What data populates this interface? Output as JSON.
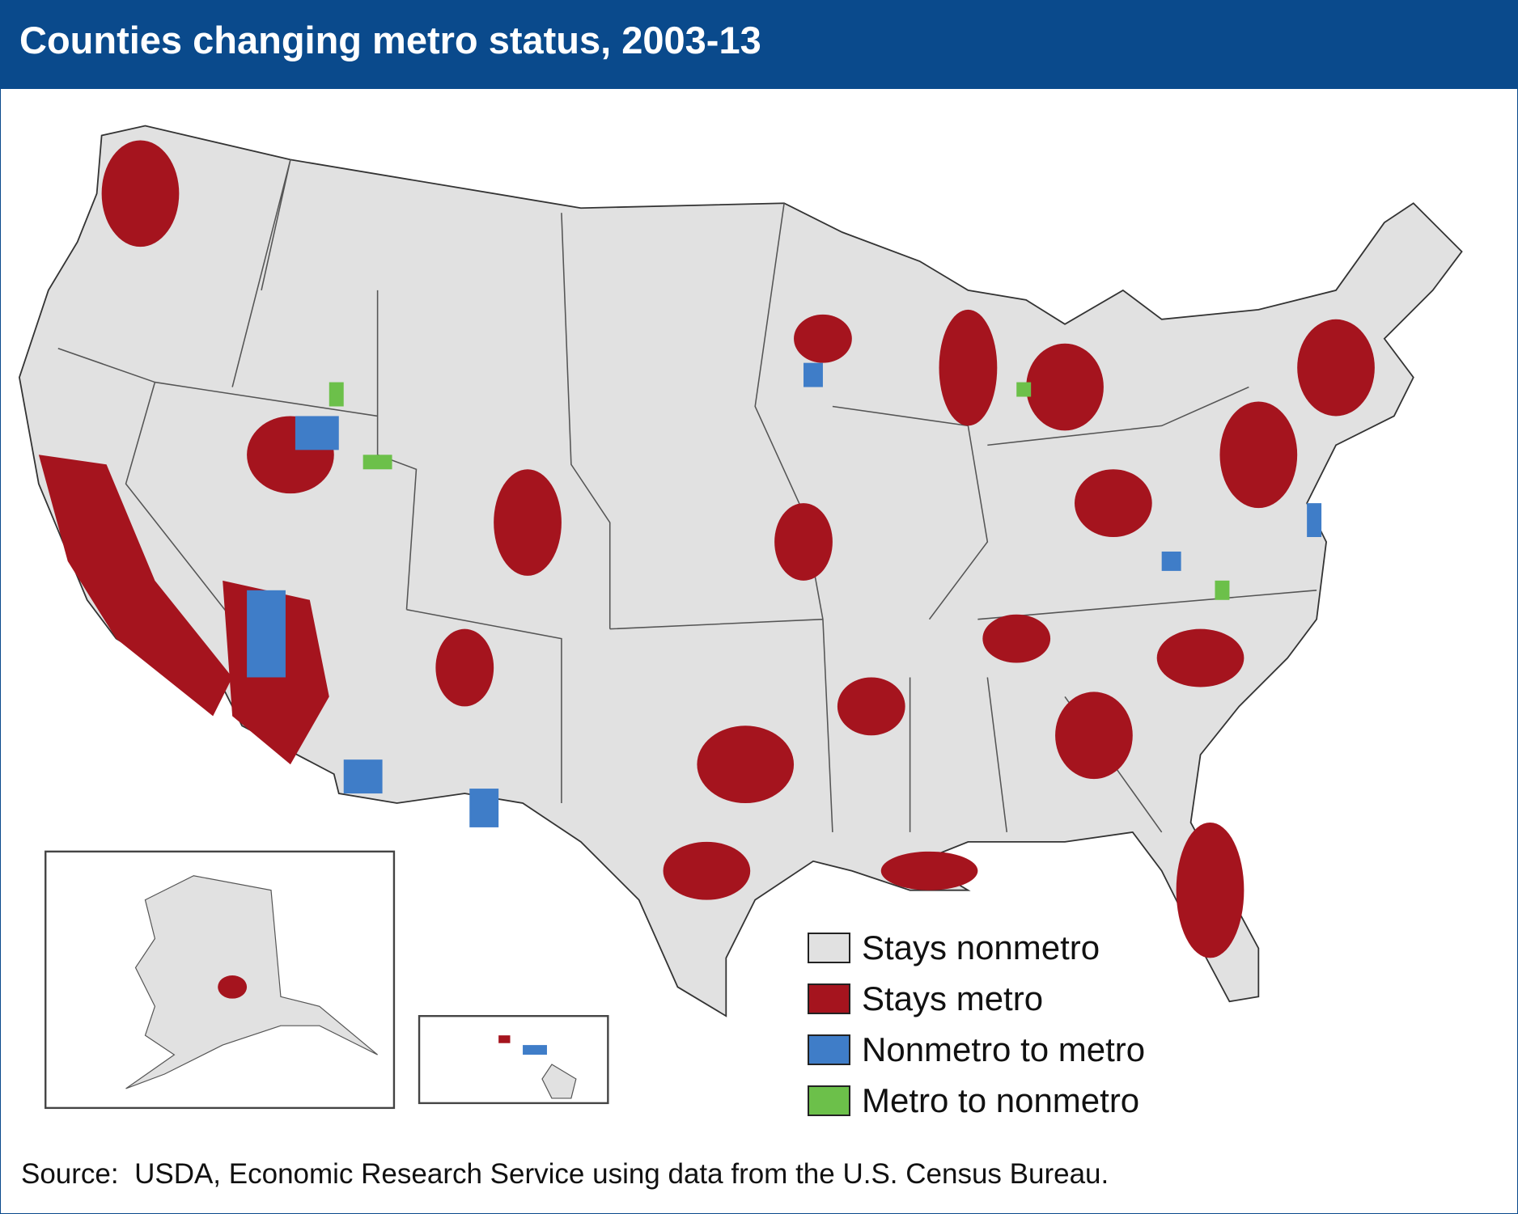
{
  "header": {
    "title": "Counties changing metro status, 2003-13"
  },
  "legend": {
    "items": [
      {
        "label": "Stays nonmetro",
        "color": "#e1e1e1"
      },
      {
        "label": "Stays metro",
        "color": "#a5141e"
      },
      {
        "label": "Nonmetro to metro",
        "color": "#3f7dc8"
      },
      {
        "label": "Metro to nonmetro",
        "color": "#6cc04a"
      }
    ]
  },
  "source": "Source:  USDA, Economic Research Service using data from the U.S. Census Bureau."
}
